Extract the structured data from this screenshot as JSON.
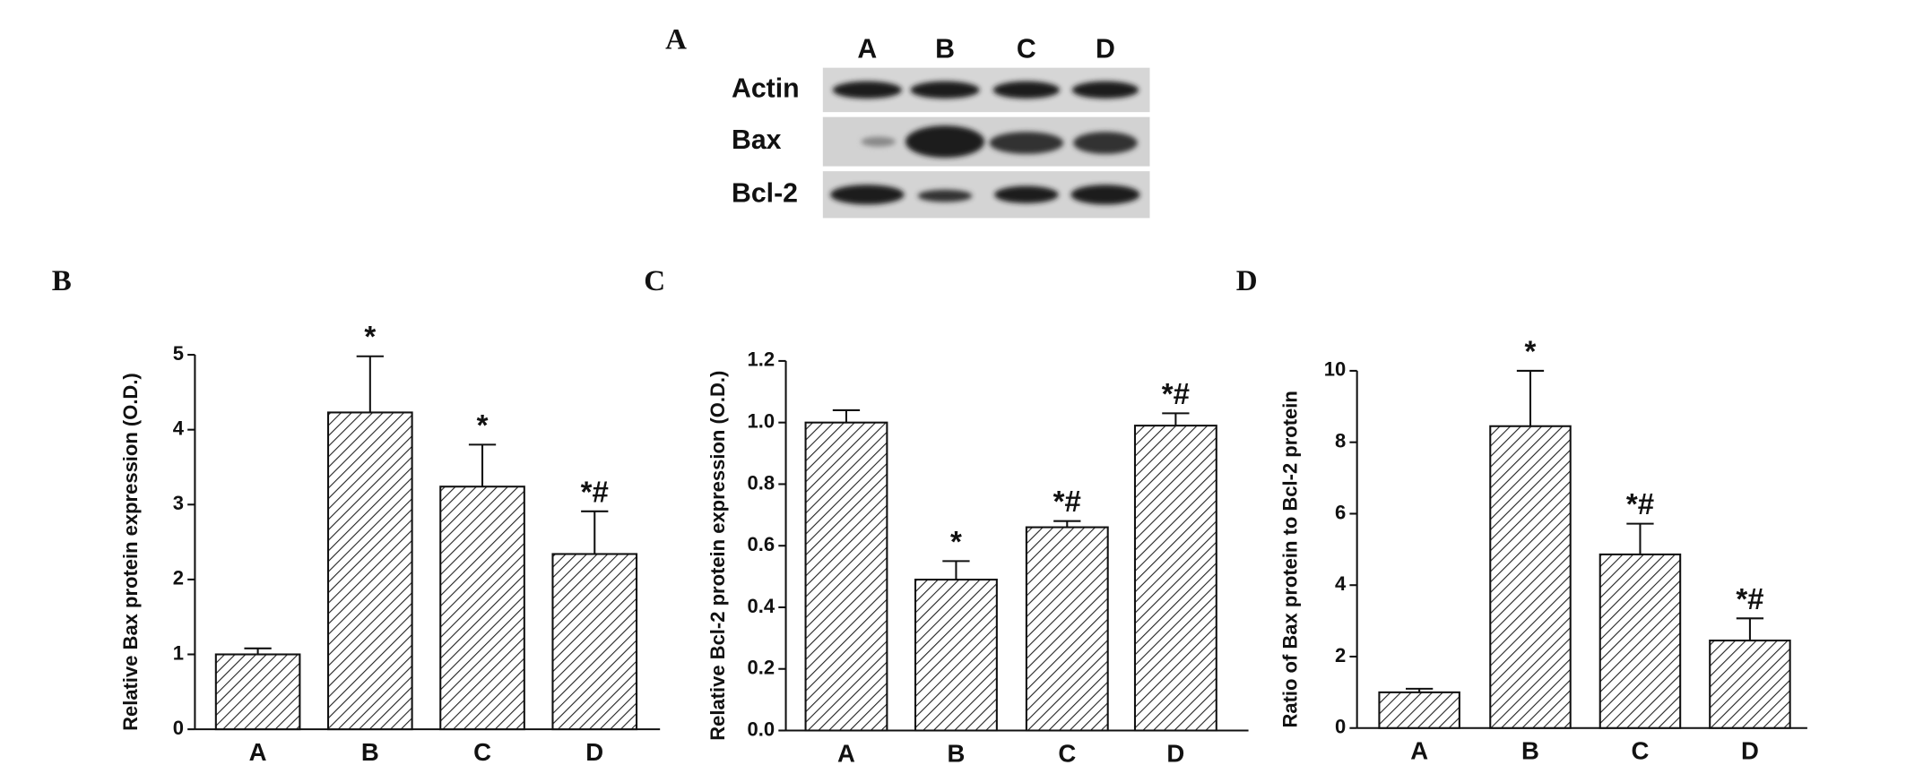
{
  "blot": {
    "panel_label": "A",
    "lanes": [
      "A",
      "B",
      "C",
      "D"
    ],
    "rows": [
      "Actin",
      "Bax",
      "Bcl-2"
    ]
  },
  "chart_data": [
    {
      "type": "bar",
      "panel_label": "B",
      "y_label": "Relative Bax protein expression (O.D.)",
      "categories": [
        "A",
        "B",
        "C",
        "D"
      ],
      "values": [
        1.0,
        4.23,
        3.24,
        2.34
      ],
      "errors": [
        0.08,
        0.75,
        0.56,
        0.57
      ],
      "annotations": [
        null,
        "*",
        "*",
        "*#"
      ],
      "color": "#ffffff",
      "hatch": true,
      "ylim": [
        0,
        5
      ],
      "yticks": [
        0,
        1,
        2,
        3,
        4,
        5
      ]
    },
    {
      "type": "bar",
      "panel_label": "C",
      "y_label": "Relative Bcl-2 protein expression (O.D.)",
      "categories": [
        "A",
        "B",
        "C",
        "D"
      ],
      "values": [
        1.0,
        0.49,
        0.66,
        0.99
      ],
      "errors": [
        0.04,
        0.06,
        0.02,
        0.04
      ],
      "annotations": [
        null,
        "*",
        "*#",
        "*#"
      ],
      "color": "#ffffff",
      "hatch": true,
      "ylim": [
        0,
        1.2
      ],
      "yticks": [
        {
          "value": 0,
          "label": "0.0"
        },
        0.2,
        0.4,
        0.6,
        0.8,
        {
          "value": 1,
          "label": "1.0"
        },
        1.2
      ]
    },
    {
      "type": "bar",
      "panel_label": "D",
      "y_label": "Ratio of Bax protein to Bcl-2 protein",
      "categories": [
        "A",
        "B",
        "C",
        "D"
      ],
      "values": [
        1.0,
        8.45,
        4.86,
        2.45
      ],
      "errors": [
        0.1,
        1.55,
        0.86,
        0.62
      ],
      "annotations": [
        null,
        "*",
        "*#",
        "*#"
      ],
      "color": "#ffffff",
      "hatch": true,
      "ylim": [
        0,
        10
      ],
      "yticks": [
        0,
        2,
        4,
        6,
        8,
        10
      ]
    }
  ]
}
